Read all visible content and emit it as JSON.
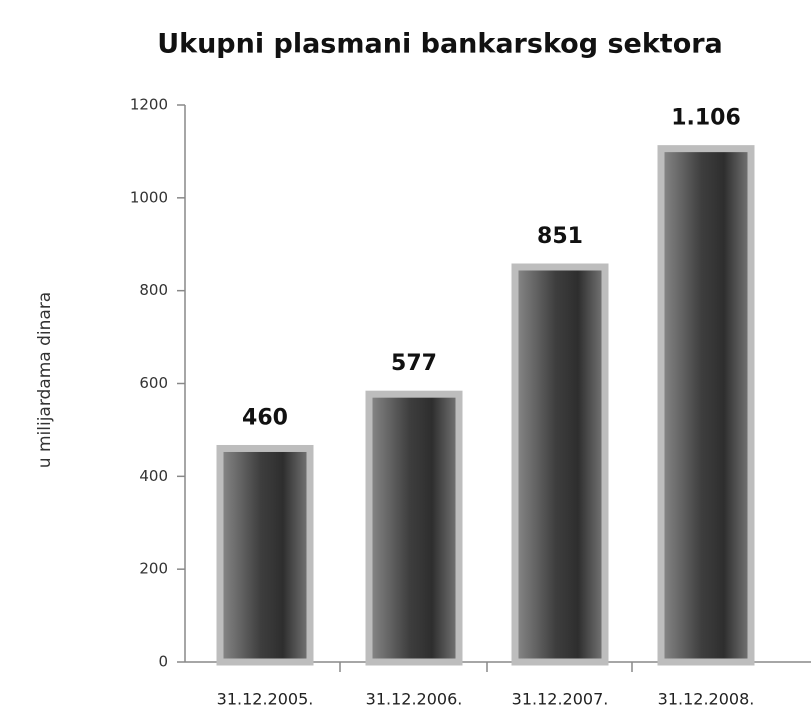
{
  "chart_data": {
    "type": "bar",
    "title": "Ukupni plasmani bankarskog sektora",
    "y_label": "u milijardama dinara",
    "categories": [
      "31.12.2005.",
      "31.12.2006.",
      "31.12.2007.",
      "31.12.2008."
    ],
    "values": [
      460,
      577,
      851,
      1106
    ],
    "value_labels": [
      "460",
      "577",
      "851",
      "1.106"
    ],
    "color": "#555555",
    "ylim": [
      0,
      1200
    ],
    "yticks": [
      0,
      200,
      400,
      600,
      800,
      1000,
      1200
    ],
    "grid": false
  }
}
